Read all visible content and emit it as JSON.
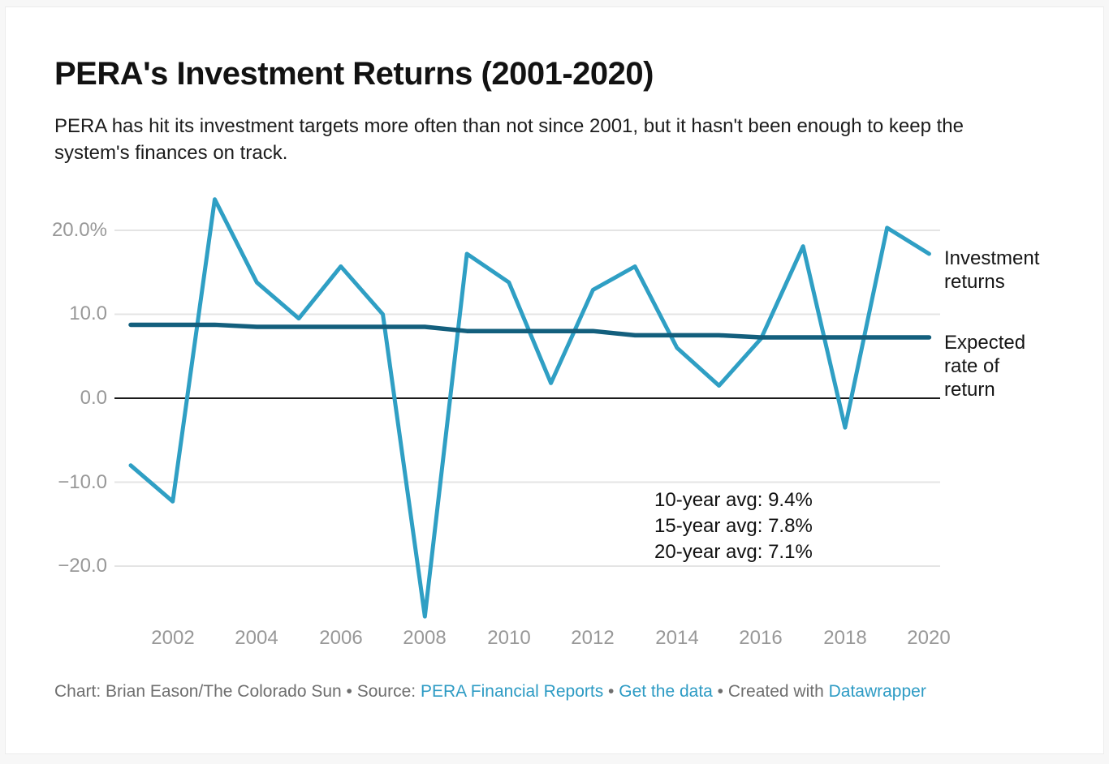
{
  "header": {
    "title": "PERA's Investment Returns (2001-2020)",
    "subtitle": "PERA has hit its investment targets more often than not since 2001, but it hasn't been enough to keep the system's finances on track."
  },
  "chart_data": {
    "type": "line",
    "x": [
      2001,
      2002,
      2003,
      2004,
      2005,
      2006,
      2007,
      2008,
      2009,
      2010,
      2011,
      2012,
      2013,
      2014,
      2015,
      2016,
      2017,
      2018,
      2019,
      2020
    ],
    "series": [
      {
        "name": "Investment returns",
        "color": "#2f9fc4",
        "values": [
          -8.0,
          -12.3,
          23.7,
          13.8,
          9.5,
          15.7,
          10.0,
          -26.0,
          17.2,
          13.8,
          1.8,
          12.9,
          15.7,
          6.0,
          1.5,
          7.1,
          18.1,
          -3.5,
          20.3,
          17.2
        ]
      },
      {
        "name": "Expected rate of return",
        "color": "#135f7d",
        "values": [
          8.75,
          8.75,
          8.75,
          8.5,
          8.5,
          8.5,
          8.5,
          8.5,
          8.0,
          8.0,
          8.0,
          8.0,
          7.5,
          7.5,
          7.5,
          7.25,
          7.25,
          7.25,
          7.25,
          7.25
        ]
      }
    ],
    "ylim": [
      -27,
      25
    ],
    "grid": "horizontal",
    "gridline_color": "#e4e4e4",
    "zeroline_color": "#1a1a1a",
    "yticks": {
      "values": [
        20,
        10,
        0,
        -10,
        -20
      ],
      "labels": [
        "20.0%",
        "10.0",
        "0.0",
        "−10.0",
        "−20.0"
      ]
    },
    "xticks": {
      "values": [
        2002,
        2004,
        2006,
        2008,
        2010,
        2012,
        2014,
        2016,
        2018,
        2020
      ],
      "labels": [
        "2002",
        "2004",
        "2006",
        "2008",
        "2010",
        "2012",
        "2014",
        "2016",
        "2018",
        "2020"
      ]
    },
    "legend_position": "right",
    "annotation": {
      "lines": [
        "10-year avg: 9.4%",
        "15-year avg: 7.8%",
        "20-year avg: 7.1%"
      ]
    }
  },
  "legend": {
    "items": [
      {
        "label": "Investment returns"
      },
      {
        "label": "Expected rate of return"
      }
    ]
  },
  "footer": {
    "link_color": "#2d9bc4",
    "parts": [
      {
        "text": "Chart: Brian Eason/The Colorado Sun • Source: "
      },
      {
        "text": "PERA Financial Reports"
      },
      {
        "text": " • "
      },
      {
        "text": "Get the data"
      },
      {
        "text": " • Created with "
      },
      {
        "text": "Datawrapper"
      }
    ]
  }
}
